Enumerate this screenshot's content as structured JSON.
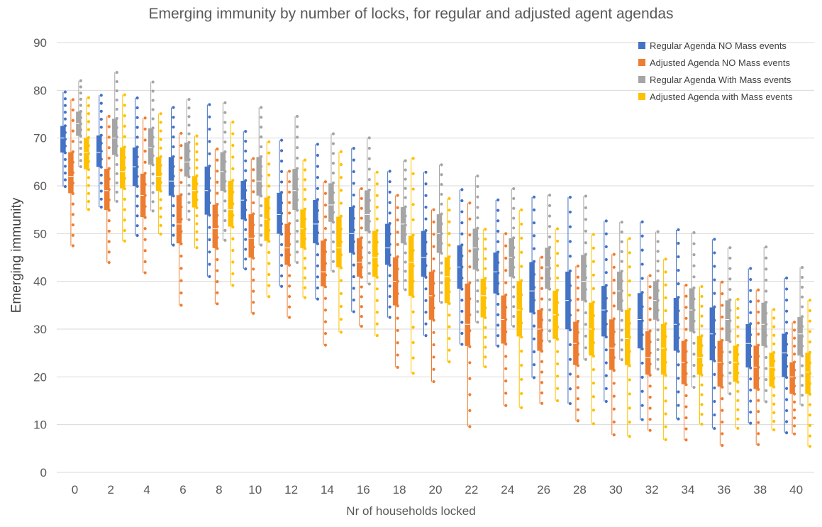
{
  "chart_data": {
    "type": "box",
    "title": "Emerging immunity by number of locks, for regular and adjusted agent agendas",
    "xlabel": "Nr of households locked",
    "ylabel": "Emerging immunity",
    "ylim": [
      0,
      90
    ],
    "yticks": [
      0,
      10,
      20,
      30,
      40,
      50,
      60,
      70,
      80,
      90
    ],
    "grid": true,
    "legend_position": "top-right",
    "categories": [
      "0",
      "2",
      "4",
      "6",
      "8",
      "10",
      "12",
      "14",
      "16",
      "18",
      "20",
      "22",
      "24",
      "26",
      "28",
      "30",
      "32",
      "34",
      "36",
      "38",
      "40"
    ],
    "series": [
      {
        "name": "Regular Agenda NO Mass events",
        "color": "#4472C4",
        "median": [
          70,
          67,
          64,
          61,
          59,
          57,
          54,
          52,
          50,
          47,
          45,
          43,
          42,
          38,
          36,
          34,
          32,
          31,
          29,
          27,
          25
        ],
        "q1": [
          67,
          64,
          60,
          58,
          54,
          53,
          50,
          48,
          46,
          43.5,
          41,
          38.5,
          37.5,
          33.5,
          30,
          28.5,
          26,
          25.5,
          23.5,
          22,
          20
        ],
        "q3": [
          72.5,
          70.5,
          68,
          66,
          64,
          61,
          58.5,
          57,
          55.5,
          52,
          50.5,
          47.5,
          46,
          44,
          42,
          39,
          37.5,
          36.5,
          34.5,
          31,
          29
        ]
      },
      {
        "name": "Adjusted Agenda NO Mass events",
        "color": "#ED7D31",
        "median": [
          62,
          59,
          58,
          52,
          51,
          49,
          47,
          42,
          44,
          40,
          37,
          31,
          32,
          30,
          27,
          26,
          24,
          23,
          23,
          22,
          20
        ],
        "q1": [
          58.5,
          55,
          53.5,
          48,
          47,
          45,
          43.5,
          39,
          41,
          35,
          32,
          26.5,
          27,
          25.5,
          22.5,
          21.5,
          20.5,
          18.5,
          18,
          17.5,
          16.5
        ],
        "q3": [
          67,
          63.5,
          62.5,
          58,
          56,
          54,
          52,
          48.5,
          49,
          45,
          42,
          39.5,
          37,
          34,
          31.5,
          32,
          29.5,
          27.5,
          27.5,
          26.5,
          23
        ]
      },
      {
        "name": "Regular Agenda With Mass events",
        "color": "#A5A5A5",
        "median": [
          73,
          70,
          68,
          65,
          63,
          61,
          59,
          56,
          54,
          52,
          50,
          47,
          45,
          43,
          40,
          38,
          36,
          34,
          32,
          31,
          29
        ],
        "q1": [
          70.5,
          66.5,
          64.5,
          62,
          59,
          58,
          55,
          52.5,
          50.5,
          48,
          46,
          42.5,
          41,
          38.5,
          36,
          34,
          32,
          29.5,
          27.5,
          26.5,
          24.5
        ],
        "q3": [
          75.5,
          74,
          72,
          69,
          67,
          66,
          63.5,
          60.5,
          59,
          55.5,
          54,
          51,
          49,
          47,
          45.5,
          42,
          40,
          38.5,
          36,
          35.5,
          32.5
        ]
      },
      {
        "name": "Adjusted Agenda with Mass events",
        "color": "#FFC000",
        "median": [
          67,
          63,
          62,
          59,
          55,
          53,
          51,
          47,
          45,
          44,
          41,
          37,
          34,
          33,
          30,
          28,
          26,
          24,
          23,
          22,
          21
        ],
        "q1": [
          63.5,
          59.5,
          59,
          55.5,
          51.5,
          48.5,
          47,
          43,
          41,
          37,
          35.5,
          32.5,
          28.5,
          28,
          24.5,
          22.5,
          20.5,
          20.5,
          19,
          18,
          16.5
        ],
        "q3": [
          70,
          68,
          66,
          62,
          61,
          57.5,
          55,
          53.5,
          50.5,
          49.5,
          45,
          40.5,
          40,
          38,
          35.5,
          34,
          31,
          28.5,
          26.5,
          25,
          25
        ]
      }
    ]
  }
}
